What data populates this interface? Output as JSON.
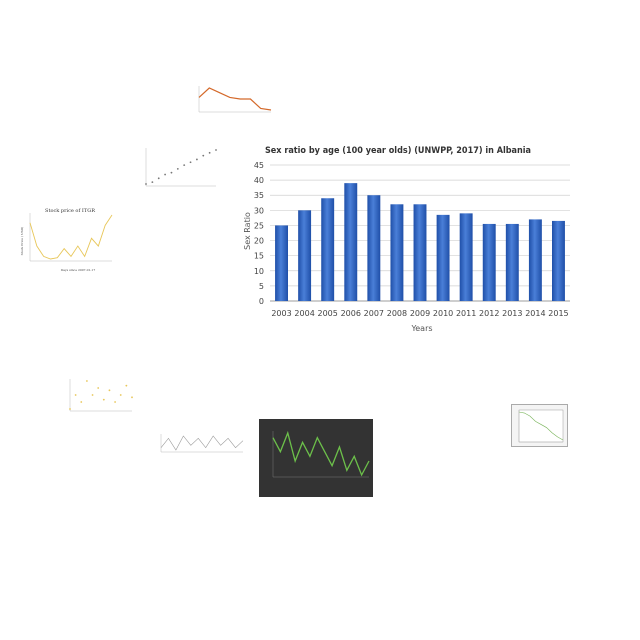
{
  "chart_data": [
    {
      "type": "bar",
      "title": "Sex ratio by age (100 year olds) (UNWPP, 2017) in Albania",
      "xlabel": "Years",
      "ylabel": "Sex Ratio",
      "categories": [
        "2003",
        "2004",
        "2005",
        "2006",
        "2007",
        "2008",
        "2009",
        "2010",
        "2011",
        "2012",
        "2013",
        "2014",
        "2015"
      ],
      "values": [
        25,
        30,
        34,
        39,
        35,
        32,
        32,
        28.5,
        29,
        25.5,
        25.5,
        27,
        26.5
      ],
      "ylim": [
        0,
        45
      ],
      "yticks": [
        0,
        5,
        10,
        15,
        20,
        25,
        30,
        35,
        40,
        45
      ],
      "grid": true,
      "colors": {
        "bar_top": "#4a7fd8",
        "bar_bottom": "#1f4fa8",
        "grid": "#d0d0d0"
      }
    },
    {
      "type": "line",
      "title": "Stock price of ITGR",
      "ylabel": "Stock Price ( USD)",
      "xlabel": "Days since 2007-01-17",
      "values": [
        3.1,
        2.2,
        1.8,
        1.7,
        1.75,
        2.1,
        1.8,
        2.2,
        1.8,
        2.5,
        2.2,
        3.0,
        3.4
      ],
      "colors": {
        "line": "#e8c75a"
      }
    },
    {
      "type": "line",
      "values": [
        2.0,
        2.6,
        2.3,
        2.0,
        1.9,
        1.9,
        1.3,
        1.2
      ],
      "colors": {
        "line": "#d4692a"
      }
    },
    {
      "type": "scatter",
      "values": [
        1.0,
        1.2,
        1.6,
        2.0,
        2.2,
        2.6,
        3.0,
        3.3,
        3.6,
        4.0,
        4.3,
        4.6
      ],
      "colors": {
        "point": "#777777"
      }
    },
    {
      "type": "line",
      "values": [
        1.0,
        1.6,
        1.3,
        2.2,
        1.6,
        1.9,
        1.4,
        1.8,
        1.3,
        1.6,
        2.0,
        1.5
      ],
      "colors": {
        "line": "#e8c75a"
      }
    },
    {
      "type": "line",
      "values": [
        1.2,
        1.6,
        1.1,
        1.7,
        1.3,
        1.6,
        1.2,
        1.7,
        1.3,
        1.6,
        1.2,
        1.5
      ],
      "colors": {
        "line": "#999999"
      }
    },
    {
      "type": "line",
      "values": [
        3.0,
        2.4,
        3.2,
        2.0,
        2.8,
        2.2,
        3.0,
        2.4,
        1.8,
        2.6,
        1.6,
        2.2,
        1.4,
        2.0
      ],
      "colors": {
        "line": "#6cc04a",
        "background": "#333333"
      }
    },
    {
      "type": "line",
      "values": [
        4.0,
        3.9,
        3.6,
        3.1,
        2.8,
        2.5,
        2.0,
        1.6,
        1.3
      ],
      "colors": {
        "line": "#7ab55c"
      }
    }
  ]
}
